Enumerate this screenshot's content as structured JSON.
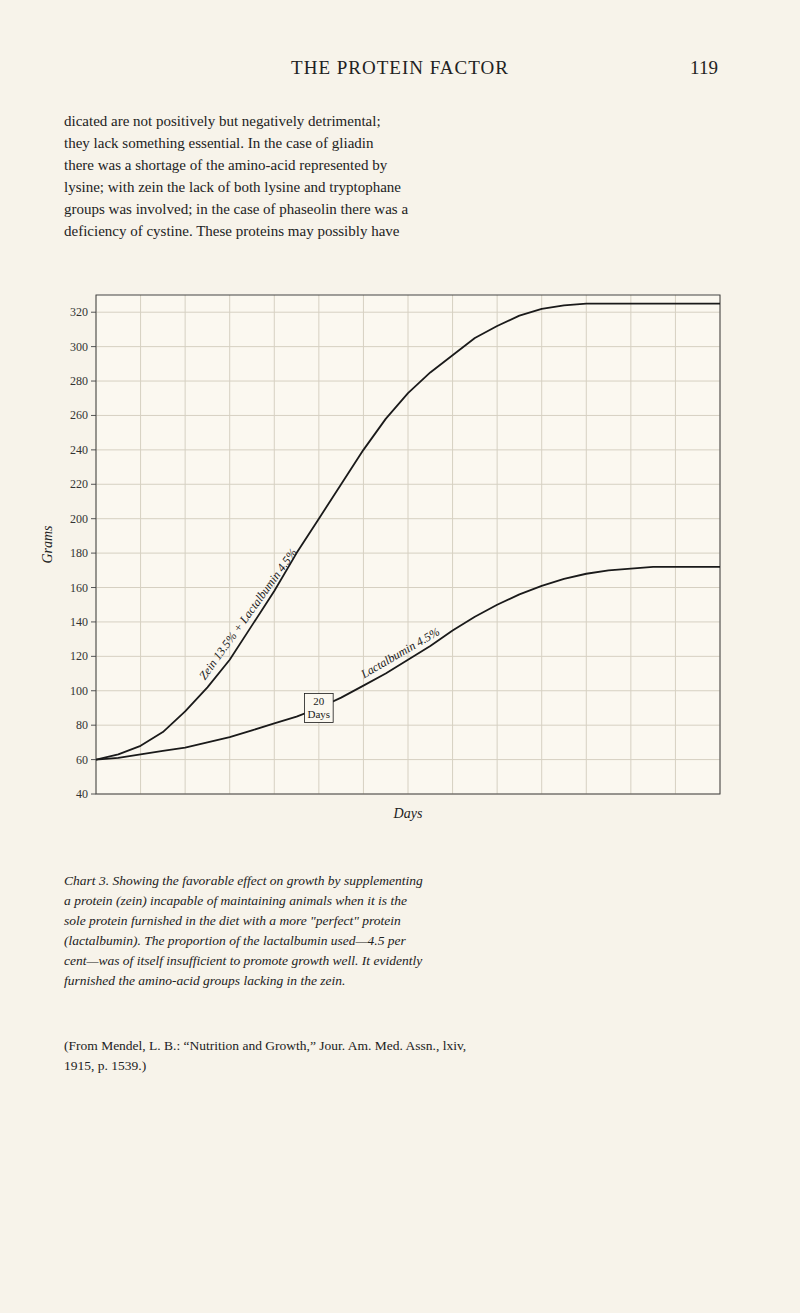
{
  "chart_data": {
    "type": "line",
    "x": [
      0,
      2,
      4,
      6,
      8,
      10,
      12,
      14,
      16,
      18,
      20,
      22,
      24,
      26,
      28,
      30,
      32,
      34,
      36,
      38,
      40,
      42,
      44,
      46,
      48,
      50,
      52,
      54,
      56
    ],
    "series": [
      {
        "name": "Zein 13.5% + Lactalbumin 4.5%",
        "color": "#1a1a1a",
        "values": [
          60,
          63,
          68,
          76,
          88,
          102,
          118,
          138,
          158,
          180,
          200,
          220,
          240,
          258,
          273,
          285,
          295,
          305,
          312,
          318,
          322,
          324,
          325,
          325,
          325,
          325,
          325,
          325,
          325
        ]
      },
      {
        "name": "Lactalbumin 4.5%",
        "color": "#1a1a1a",
        "values": [
          60,
          61,
          63,
          65,
          67,
          70,
          73,
          77,
          81,
          85,
          90,
          96,
          103,
          110,
          118,
          126,
          135,
          143,
          150,
          156,
          161,
          165,
          168,
          170,
          171,
          172,
          172,
          172,
          172
        ]
      }
    ],
    "xlabel": "Days",
    "ylabel": "Grams",
    "xlim": [
      0,
      56
    ],
    "ylim": [
      40,
      330
    ],
    "xticks": [
      0,
      4,
      8,
      12,
      16,
      20,
      24,
      28,
      32,
      36,
      40,
      44,
      48,
      52,
      56
    ],
    "yticks": [
      40,
      60,
      80,
      100,
      120,
      140,
      160,
      180,
      200,
      220,
      240,
      260,
      280,
      300,
      320
    ],
    "grid": true,
    "tick_labels": "y",
    "annotations": [
      {
        "text": "20\nDays",
        "x": 20,
        "y": 90
      }
    ]
  },
  "page_text": {
    "header": "THE PROTEIN FACTOR",
    "page_number": "119",
    "body": [
      "dicated are not positively but negatively detrimental;",
      "they lack something essential.  In the case of gliadin",
      "there was a shortage of the amino-acid represented by",
      "lysine; with zein the lack of both lysine and tryptophane",
      "groups was involved; in the case of phaseolin there was a",
      "deficiency of cystine.  These proteins may possibly have"
    ],
    "caption": [
      "Chart 3. Showing the favorable effect on growth by supplementing",
      "a protein (zein) incapable of maintaining animals when it is the",
      "sole protein furnished in the diet with a more \"perfect\" protein",
      "(lactalbumin). The proportion of the lactalbumin used—4.5 per",
      "cent—was of itself insufficient to promote growth well. It evidently",
      "furnished the amino-acid groups lacking in the zein."
    ],
    "reference": [
      "(From Mendel, L. B.: “Nutrition and Growth,” Jour. Am. Med. Assn., lxiv,",
      "1915, p. 1539.)"
    ]
  }
}
